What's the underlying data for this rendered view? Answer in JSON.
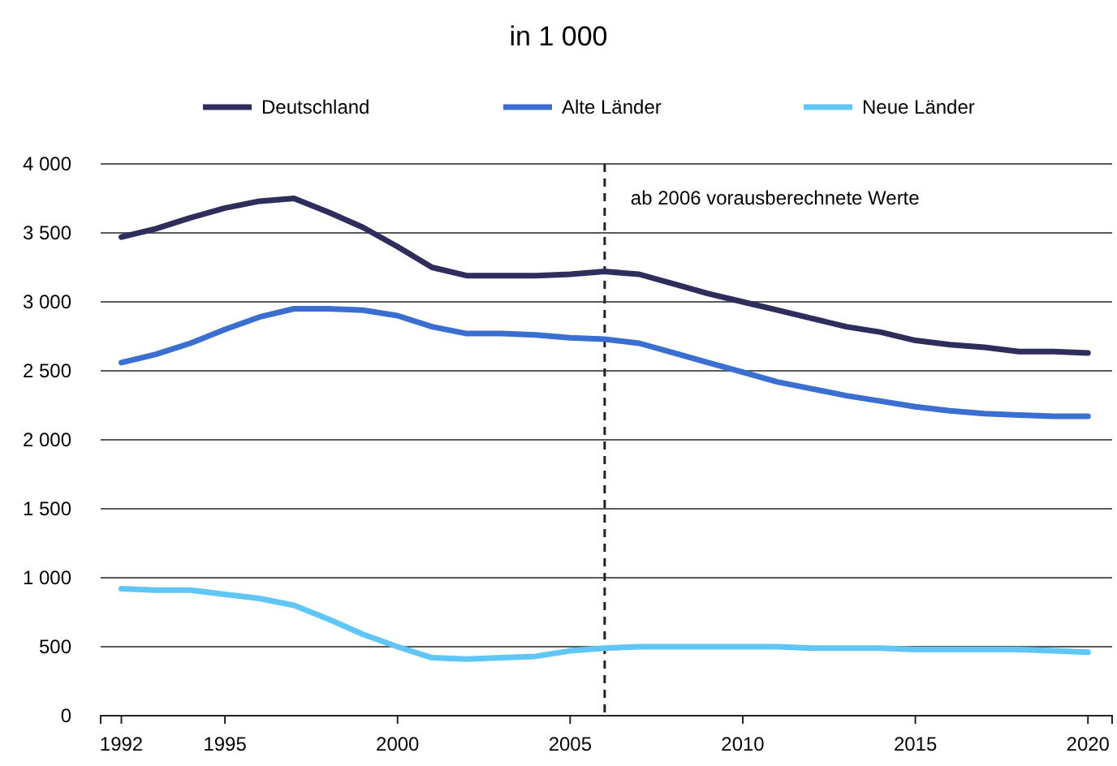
{
  "chart_data": {
    "type": "line",
    "title": "in 1 000",
    "x": [
      1992,
      1993,
      1994,
      1995,
      1996,
      1997,
      1998,
      1999,
      2000,
      2001,
      2002,
      2003,
      2004,
      2005,
      2006,
      2007,
      2008,
      2009,
      2010,
      2011,
      2012,
      2013,
      2014,
      2015,
      2016,
      2017,
      2018,
      2019,
      2020
    ],
    "series": [
      {
        "name": "Deutschland",
        "color": "#2e2d5c",
        "values": [
          3470,
          3530,
          3610,
          3680,
          3730,
          3750,
          3650,
          3540,
          3400,
          3250,
          3190,
          3190,
          3190,
          3200,
          3220,
          3200,
          3130,
          3060,
          3000,
          2940,
          2880,
          2820,
          2780,
          2720,
          2690,
          2670,
          2640,
          2640,
          2630
        ]
      },
      {
        "name": "Alte Länder",
        "color": "#3a6fd1",
        "values": [
          2560,
          2620,
          2700,
          2800,
          2890,
          2950,
          2950,
          2940,
          2900,
          2820,
          2770,
          2770,
          2760,
          2740,
          2730,
          2700,
          2630,
          2560,
          2490,
          2420,
          2370,
          2320,
          2280,
          2240,
          2210,
          2190,
          2180,
          2170,
          2170
        ]
      },
      {
        "name": "Neue Länder",
        "color": "#5fc6f5",
        "values": [
          920,
          910,
          910,
          880,
          850,
          800,
          700,
          590,
          500,
          420,
          410,
          420,
          430,
          470,
          490,
          500,
          500,
          500,
          500,
          500,
          490,
          490,
          490,
          480,
          480,
          480,
          480,
          470,
          460
        ]
      }
    ],
    "xlim": [
      1991.4,
      2020.7
    ],
    "xticks": [
      1992,
      1995,
      2000,
      2005,
      2010,
      2015,
      2020
    ],
    "ylim": [
      0,
      4000
    ],
    "yticks": [
      {
        "value": 0,
        "label": "0"
      },
      {
        "value": 500,
        "label": "500"
      },
      {
        "value": 1000,
        "label": "1 000"
      },
      {
        "value": 1500,
        "label": "1 500"
      },
      {
        "value": 2000,
        "label": "2 000"
      },
      {
        "value": 2500,
        "label": "2 500"
      },
      {
        "value": 3000,
        "label": "3 000"
      },
      {
        "value": 3500,
        "label": "3 500"
      },
      {
        "value": 4000,
        "label": "4 000"
      }
    ],
    "grid": "y",
    "legend": "top",
    "marker": "none",
    "line_style": "solid",
    "ref_lines": [
      {
        "axis": "x",
        "value": 2006,
        "label": "ab 2006 vorausberechnete Werte",
        "color": "#222222",
        "line_style": "dashed"
      }
    ]
  }
}
